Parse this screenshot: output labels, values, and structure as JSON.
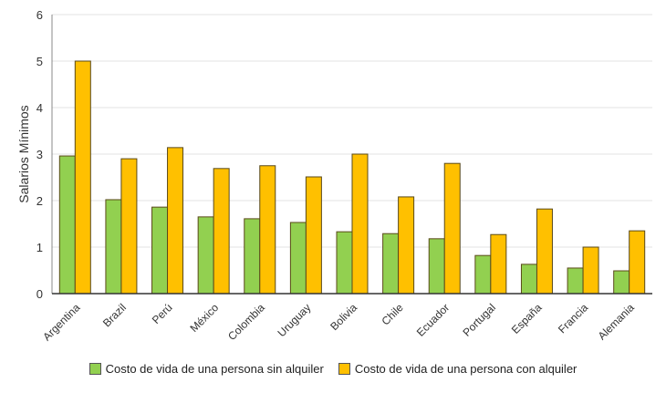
{
  "chart_data": {
    "type": "bar",
    "title": "",
    "xlabel": "",
    "ylabel": "Salarios Mínimos",
    "ylim": [
      0,
      6
    ],
    "yticks": [
      "0",
      "1",
      "2",
      "3",
      "4",
      "5",
      "6"
    ],
    "grid": true,
    "legend_position": "bottom",
    "categories": [
      "Argentina",
      "Brazil",
      "Perú",
      "México",
      "Colombia",
      "Uruguay",
      "Bolivia",
      "Chile",
      "Ecuador",
      "Portugal",
      "España",
      "Francia",
      "Alemania"
    ],
    "series": [
      {
        "name": "Costo de vida de una persona sin alquiler",
        "color": "#92d050",
        "values": [
          2.96,
          2.02,
          1.86,
          1.65,
          1.61,
          1.53,
          1.33,
          1.29,
          1.18,
          0.82,
          0.63,
          0.55,
          0.49
        ]
      },
      {
        "name": "Costo de vida de una persona con alquiler",
        "color": "#ffc000",
        "values": [
          5.0,
          2.9,
          3.14,
          2.69,
          2.75,
          2.51,
          3.0,
          2.08,
          2.8,
          1.27,
          1.82,
          1.0,
          1.35
        ]
      }
    ]
  }
}
